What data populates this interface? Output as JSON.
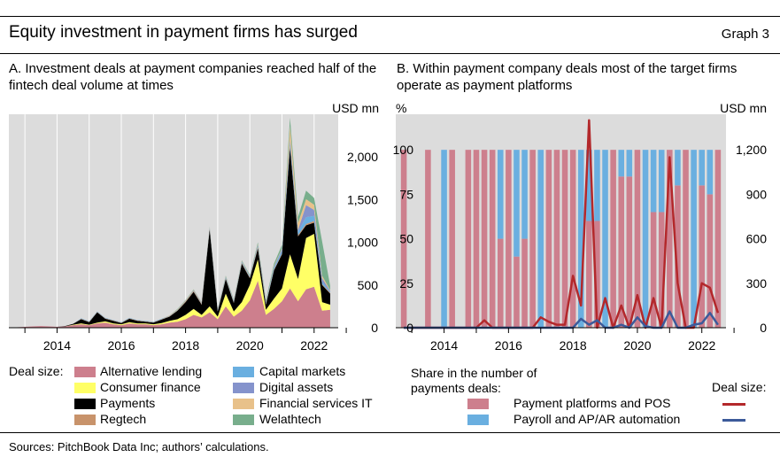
{
  "header": {
    "title": "Equity investment in payment firms has surged",
    "graph_label": "Graph 3"
  },
  "footer": {
    "sources": "Sources: PitchBook Data Inc; authors’ calculations."
  },
  "colors": {
    "plot_bg": "#dcdcdc",
    "alternative_lending": "#cd7f8d",
    "consumer_finance": "#ffff66",
    "payments": "#000000",
    "regtech": "#c8936b",
    "capital_markets": "#6aafe0",
    "digital_assets": "#8593cc",
    "financial_services_it": "#e8c18a",
    "welathtech": "#78ae8c",
    "payment_platforms_pos": "#cd7f8d",
    "payroll_apar": "#6aafe0",
    "line_red": "#b3282b",
    "line_blue": "#3c5a9a"
  },
  "panel_a": {
    "title": "A. Investment deals at payment companies reached half of the fintech deal volume at times"
  },
  "panel_b": {
    "title": "B. Within payment company deals most of the target firms operate as payment platforms"
  },
  "legend_a": {
    "heading": "Deal size:",
    "items": [
      "Alternative lending",
      "Consumer finance",
      "Payments",
      "Regtech",
      "Capital markets",
      "Digital assets",
      "Financial services IT",
      "Welathtech"
    ]
  },
  "legend_b": {
    "share_heading": "Share in the number of payments deals:",
    "deal_size_heading": "Deal size:",
    "items": [
      "Payment platforms and POS",
      "Payroll and AP/AR automation"
    ]
  },
  "chart_data": [
    {
      "type": "area",
      "stacked": true,
      "y_unit_label": "USD mn",
      "ylim": [
        0,
        2500
      ],
      "yticks": [
        0,
        500,
        1000,
        1500,
        2000
      ],
      "ytick_labels": [
        "0",
        "500",
        "1,000",
        "1,500",
        "2,000"
      ],
      "xticks": [
        "2014",
        "2016",
        "2018",
        "2020",
        "2022"
      ],
      "x_start": 2012.75,
      "x_step": 0.25,
      "x": [
        2012.75,
        2013.0,
        2013.25,
        2013.5,
        2013.75,
        2014.0,
        2014.25,
        2014.5,
        2014.75,
        2015.0,
        2015.25,
        2015.5,
        2015.75,
        2016.0,
        2016.25,
        2016.5,
        2016.75,
        2017.0,
        2017.25,
        2017.5,
        2017.75,
        2018.0,
        2018.25,
        2018.5,
        2018.75,
        2019.0,
        2019.25,
        2019.5,
        2019.75,
        2020.0,
        2020.25,
        2020.5,
        2020.75,
        2021.0,
        2021.25,
        2021.5,
        2021.75,
        2022.0,
        2022.25,
        2022.5
      ],
      "series": [
        {
          "name": "Alternative lending",
          "values": [
            5,
            10,
            15,
            20,
            15,
            10,
            15,
            30,
            40,
            30,
            50,
            60,
            40,
            30,
            50,
            40,
            40,
            30,
            40,
            60,
            70,
            100,
            150,
            120,
            180,
            100,
            250,
            130,
            200,
            320,
            550,
            150,
            220,
            310,
            460,
            310,
            450,
            480,
            200,
            210
          ]
        },
        {
          "name": "Consumer finance",
          "values": [
            0,
            0,
            0,
            0,
            0,
            0,
            0,
            5,
            10,
            5,
            10,
            15,
            10,
            10,
            15,
            10,
            10,
            10,
            15,
            20,
            30,
            50,
            70,
            30,
            70,
            30,
            150,
            60,
            100,
            180,
            250,
            60,
            120,
            150,
            400,
            260,
            600,
            620,
            100,
            60
          ]
        },
        {
          "name": "Payments",
          "values": [
            0,
            0,
            0,
            0,
            0,
            0,
            5,
            10,
            50,
            30,
            120,
            30,
            30,
            15,
            40,
            30,
            20,
            20,
            40,
            50,
            100,
            150,
            200,
            120,
            900,
            60,
            170,
            100,
            450,
            80,
            130,
            60,
            330,
            400,
            1250,
            500,
            150,
            130,
            200,
            130
          ]
        },
        {
          "name": "Regtech",
          "values": [
            0,
            0,
            0,
            0,
            0,
            0,
            0,
            0,
            5,
            5,
            5,
            5,
            5,
            5,
            5,
            5,
            5,
            5,
            5,
            5,
            5,
            10,
            10,
            10,
            10,
            10,
            10,
            10,
            10,
            10,
            15,
            10,
            10,
            10,
            20,
            15,
            15,
            20,
            10,
            10
          ]
        },
        {
          "name": "Capital markets",
          "values": [
            0,
            0,
            0,
            0,
            0,
            0,
            0,
            0,
            5,
            5,
            5,
            5,
            5,
            5,
            5,
            5,
            5,
            5,
            5,
            5,
            5,
            5,
            5,
            5,
            10,
            10,
            10,
            10,
            10,
            10,
            15,
            10,
            20,
            30,
            50,
            40,
            80,
            60,
            30,
            10
          ]
        },
        {
          "name": "Digital assets",
          "values": [
            0,
            0,
            0,
            0,
            0,
            0,
            0,
            0,
            0,
            0,
            0,
            0,
            0,
            0,
            0,
            0,
            0,
            0,
            0,
            0,
            0,
            0,
            5,
            5,
            5,
            5,
            5,
            5,
            5,
            5,
            10,
            10,
            10,
            20,
            30,
            20,
            140,
            70,
            40,
            10
          ]
        },
        {
          "name": "Financial services IT",
          "values": [
            0,
            0,
            0,
            0,
            0,
            0,
            0,
            0,
            0,
            0,
            0,
            0,
            0,
            0,
            0,
            0,
            0,
            0,
            0,
            5,
            5,
            5,
            5,
            5,
            5,
            5,
            5,
            5,
            5,
            5,
            10,
            5,
            10,
            10,
            150,
            80,
            70,
            60,
            30,
            10
          ]
        },
        {
          "name": "Welathtech",
          "values": [
            0,
            0,
            0,
            0,
            0,
            0,
            0,
            0,
            0,
            0,
            0,
            0,
            0,
            0,
            0,
            0,
            0,
            0,
            0,
            0,
            5,
            5,
            5,
            5,
            5,
            5,
            10,
            10,
            10,
            10,
            20,
            20,
            30,
            40,
            100,
            70,
            100,
            80,
            400,
            50
          ]
        }
      ]
    },
    {
      "type": "bar",
      "stacked": true,
      "left_axis": {
        "unit_label": "%",
        "ylim": [
          0,
          120
        ],
        "yticks": [
          0,
          25,
          50,
          75,
          100
        ]
      },
      "right_axis": {
        "unit_label": "USD mn",
        "ylim": [
          0,
          1440
        ],
        "yticks": [
          0,
          300,
          600,
          900,
          1200
        ],
        "ytick_labels": [
          "0",
          "300",
          "600",
          "900",
          "1,200"
        ]
      },
      "xticks": [
        "2014",
        "2016",
        "2018",
        "2020",
        "2022"
      ],
      "x_start": 2012.75,
      "x_step": 0.25,
      "bar_series": [
        {
          "name": "Payment platforms and POS",
          "values": [
            100,
            0,
            0,
            100,
            0,
            0,
            100,
            0,
            100,
            100,
            100,
            100,
            50,
            100,
            40,
            50,
            100,
            0,
            100,
            100,
            100,
            100,
            0,
            60,
            60,
            0,
            100,
            85,
            85,
            100,
            0,
            65,
            65,
            100,
            80,
            100,
            0,
            80,
            75,
            100
          ]
        },
        {
          "name": "Payroll and AP/AR automation",
          "values": [
            0,
            0,
            0,
            0,
            0,
            100,
            0,
            0,
            0,
            0,
            0,
            0,
            50,
            0,
            60,
            50,
            0,
            100,
            0,
            0,
            0,
            0,
            100,
            40,
            40,
            100,
            0,
            15,
            15,
            0,
            100,
            35,
            35,
            0,
            20,
            0,
            100,
            20,
            25,
            0
          ]
        }
      ],
      "line_series": [
        {
          "name": "Payment platforms and POS",
          "axis": "right",
          "values": [
            0,
            0,
            0,
            0,
            0,
            0,
            0,
            0,
            0,
            0,
            50,
            0,
            0,
            0,
            0,
            0,
            0,
            70,
            40,
            20,
            20,
            350,
            150,
            1400,
            0,
            200,
            0,
            150,
            0,
            220,
            0,
            200,
            0,
            1150,
            300,
            0,
            0,
            300,
            270,
            100
          ]
        },
        {
          "name": "Payroll and AP/AR automation",
          "axis": "right",
          "values": [
            0,
            0,
            0,
            0,
            0,
            0,
            0,
            0,
            0,
            0,
            0,
            0,
            0,
            0,
            0,
            0,
            0,
            0,
            0,
            0,
            0,
            0,
            60,
            20,
            50,
            0,
            0,
            20,
            0,
            70,
            10,
            0,
            0,
            110,
            0,
            0,
            20,
            30,
            100,
            20
          ]
        }
      ]
    }
  ]
}
